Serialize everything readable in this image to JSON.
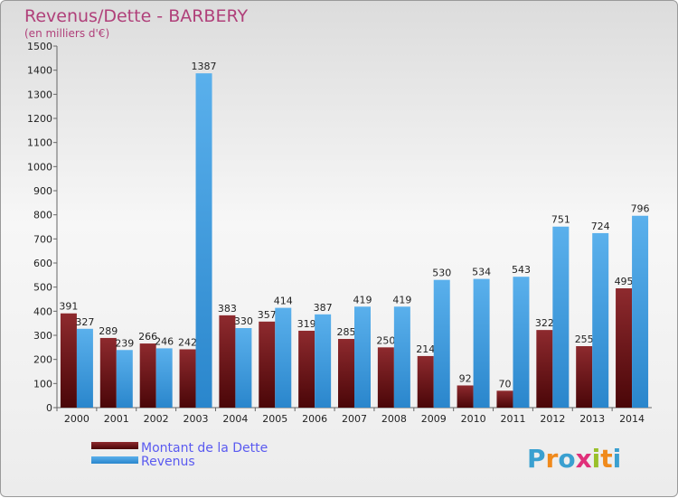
{
  "chart_data": {
    "type": "bar",
    "title": "Revenus/Dette - BARBERY",
    "subtitle": "(en milliers d'€)",
    "categories": [
      "2000",
      "2001",
      "2002",
      "2003",
      "2004",
      "2005",
      "2006",
      "2007",
      "2008",
      "2009",
      "2010",
      "2011",
      "2012",
      "2013",
      "2014"
    ],
    "series": [
      {
        "name": "Montant de la Dette",
        "color": "#7a1418",
        "values": [
          391,
          289,
          266,
          242,
          383,
          357,
          319,
          285,
          250,
          214,
          92,
          70,
          322,
          255,
          495
        ]
      },
      {
        "name": "Revenus",
        "color": "#3d9be0",
        "values": [
          327,
          239,
          246,
          1387,
          330,
          414,
          387,
          419,
          419,
          530,
          534,
          543,
          751,
          724,
          796
        ]
      }
    ],
    "ylim": [
      0,
      1500
    ],
    "yticks": [
      0,
      100,
      200,
      300,
      400,
      500,
      600,
      700,
      800,
      900,
      1000,
      1100,
      1200,
      1300,
      1400,
      1500
    ],
    "grid": false,
    "legend_position": "bottom-left"
  },
  "logo": {
    "letters": [
      "P",
      "r",
      "o",
      "x",
      "i",
      "t",
      "i"
    ],
    "colors": [
      "#3aa0d0",
      "#f08a1c",
      "#3aa0d0",
      "#e0307a",
      "#9ac02a",
      "#f08a1c",
      "#3aa0d0"
    ]
  }
}
